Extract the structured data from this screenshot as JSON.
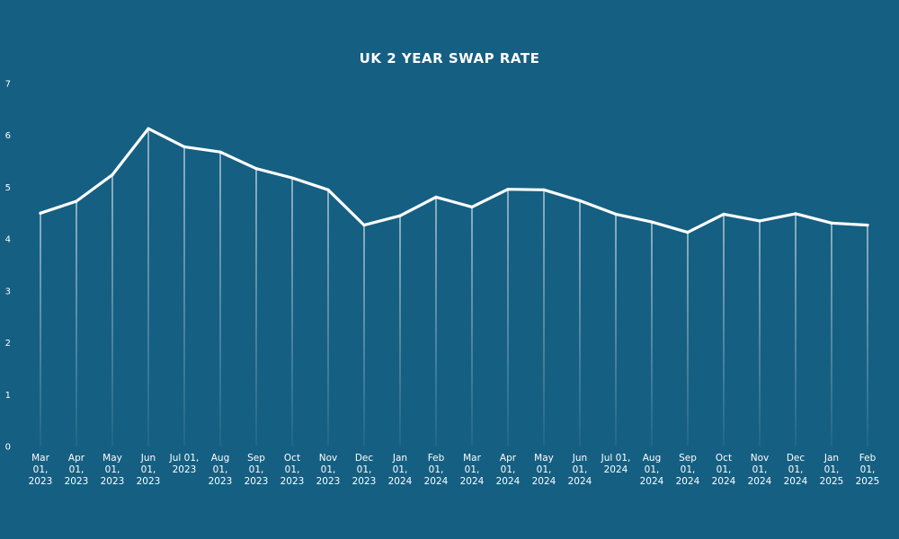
{
  "chart_data": {
    "type": "line",
    "title": "UK 2 YEAR SWAP RATE",
    "xlabel": "",
    "ylabel": "",
    "ylim": [
      0,
      7
    ],
    "yticks": [
      "0",
      "1",
      "2",
      "3",
      "4",
      "5",
      "6",
      "7"
    ],
    "grid": "vertical drop lines from each point to axis",
    "legend": "none",
    "categories": [
      "Mar 01, 2023",
      "Apr 01, 2023",
      "May 01, 2023",
      "Jun 01, 2023",
      "Jul 01, 2023",
      "Aug 01, 2023",
      "Sep 01, 2023",
      "Oct 01, 2023",
      "Nov 01, 2023",
      "Dec 01, 2023",
      "Jan 01, 2024",
      "Feb 01, 2024",
      "Mar 01, 2024",
      "Apr 01, 2024",
      "May 01, 2024",
      "Jun 01, 2024",
      "Jul 01, 2024",
      "Aug 01, 2024",
      "Sep 01, 2024",
      "Oct 01, 2024",
      "Nov 01, 2024",
      "Dec 01, 2024",
      "Jan 01, 2025",
      "Feb 01, 2025"
    ],
    "tick_lines": [
      [
        "Mar",
        "01,",
        "2023"
      ],
      [
        "Apr",
        "01,",
        "2023"
      ],
      [
        "May",
        "01,",
        "2023"
      ],
      [
        "Jun",
        "01,",
        "2023"
      ],
      [
        "Jul 01,",
        "2023"
      ],
      [
        "Aug",
        "01,",
        "2023"
      ],
      [
        "Sep",
        "01,",
        "2023"
      ],
      [
        "Oct",
        "01,",
        "2023"
      ],
      [
        "Nov",
        "01,",
        "2023"
      ],
      [
        "Dec",
        "01,",
        "2023"
      ],
      [
        "Jan",
        "01,",
        "2024"
      ],
      [
        "Feb",
        "01,",
        "2024"
      ],
      [
        "Mar",
        "01,",
        "2024"
      ],
      [
        "Apr",
        "01,",
        "2024"
      ],
      [
        "May",
        "01,",
        "2024"
      ],
      [
        "Jun",
        "01,",
        "2024"
      ],
      [
        "Jul 01,",
        "2024"
      ],
      [
        "Aug",
        "01,",
        "2024"
      ],
      [
        "Sep",
        "01,",
        "2024"
      ],
      [
        "Oct",
        "01,",
        "2024"
      ],
      [
        "Nov",
        "01,",
        "2024"
      ],
      [
        "Dec",
        "01,",
        "2024"
      ],
      [
        "Jan",
        "01,",
        "2025"
      ],
      [
        "Feb",
        "01,",
        "2025"
      ]
    ],
    "series": [
      {
        "values": [
          4.5,
          4.73,
          5.24,
          6.13,
          5.78,
          5.68,
          5.36,
          5.18,
          4.95,
          4.27,
          4.45,
          4.81,
          4.62,
          4.96,
          4.95,
          4.74,
          4.48,
          4.33,
          4.13,
          4.48,
          4.35,
          4.49,
          4.31,
          4.27
        ]
      }
    ],
    "colors": {
      "background": "#155f82",
      "line": "#ffffff",
      "text": "#ffffff"
    }
  }
}
